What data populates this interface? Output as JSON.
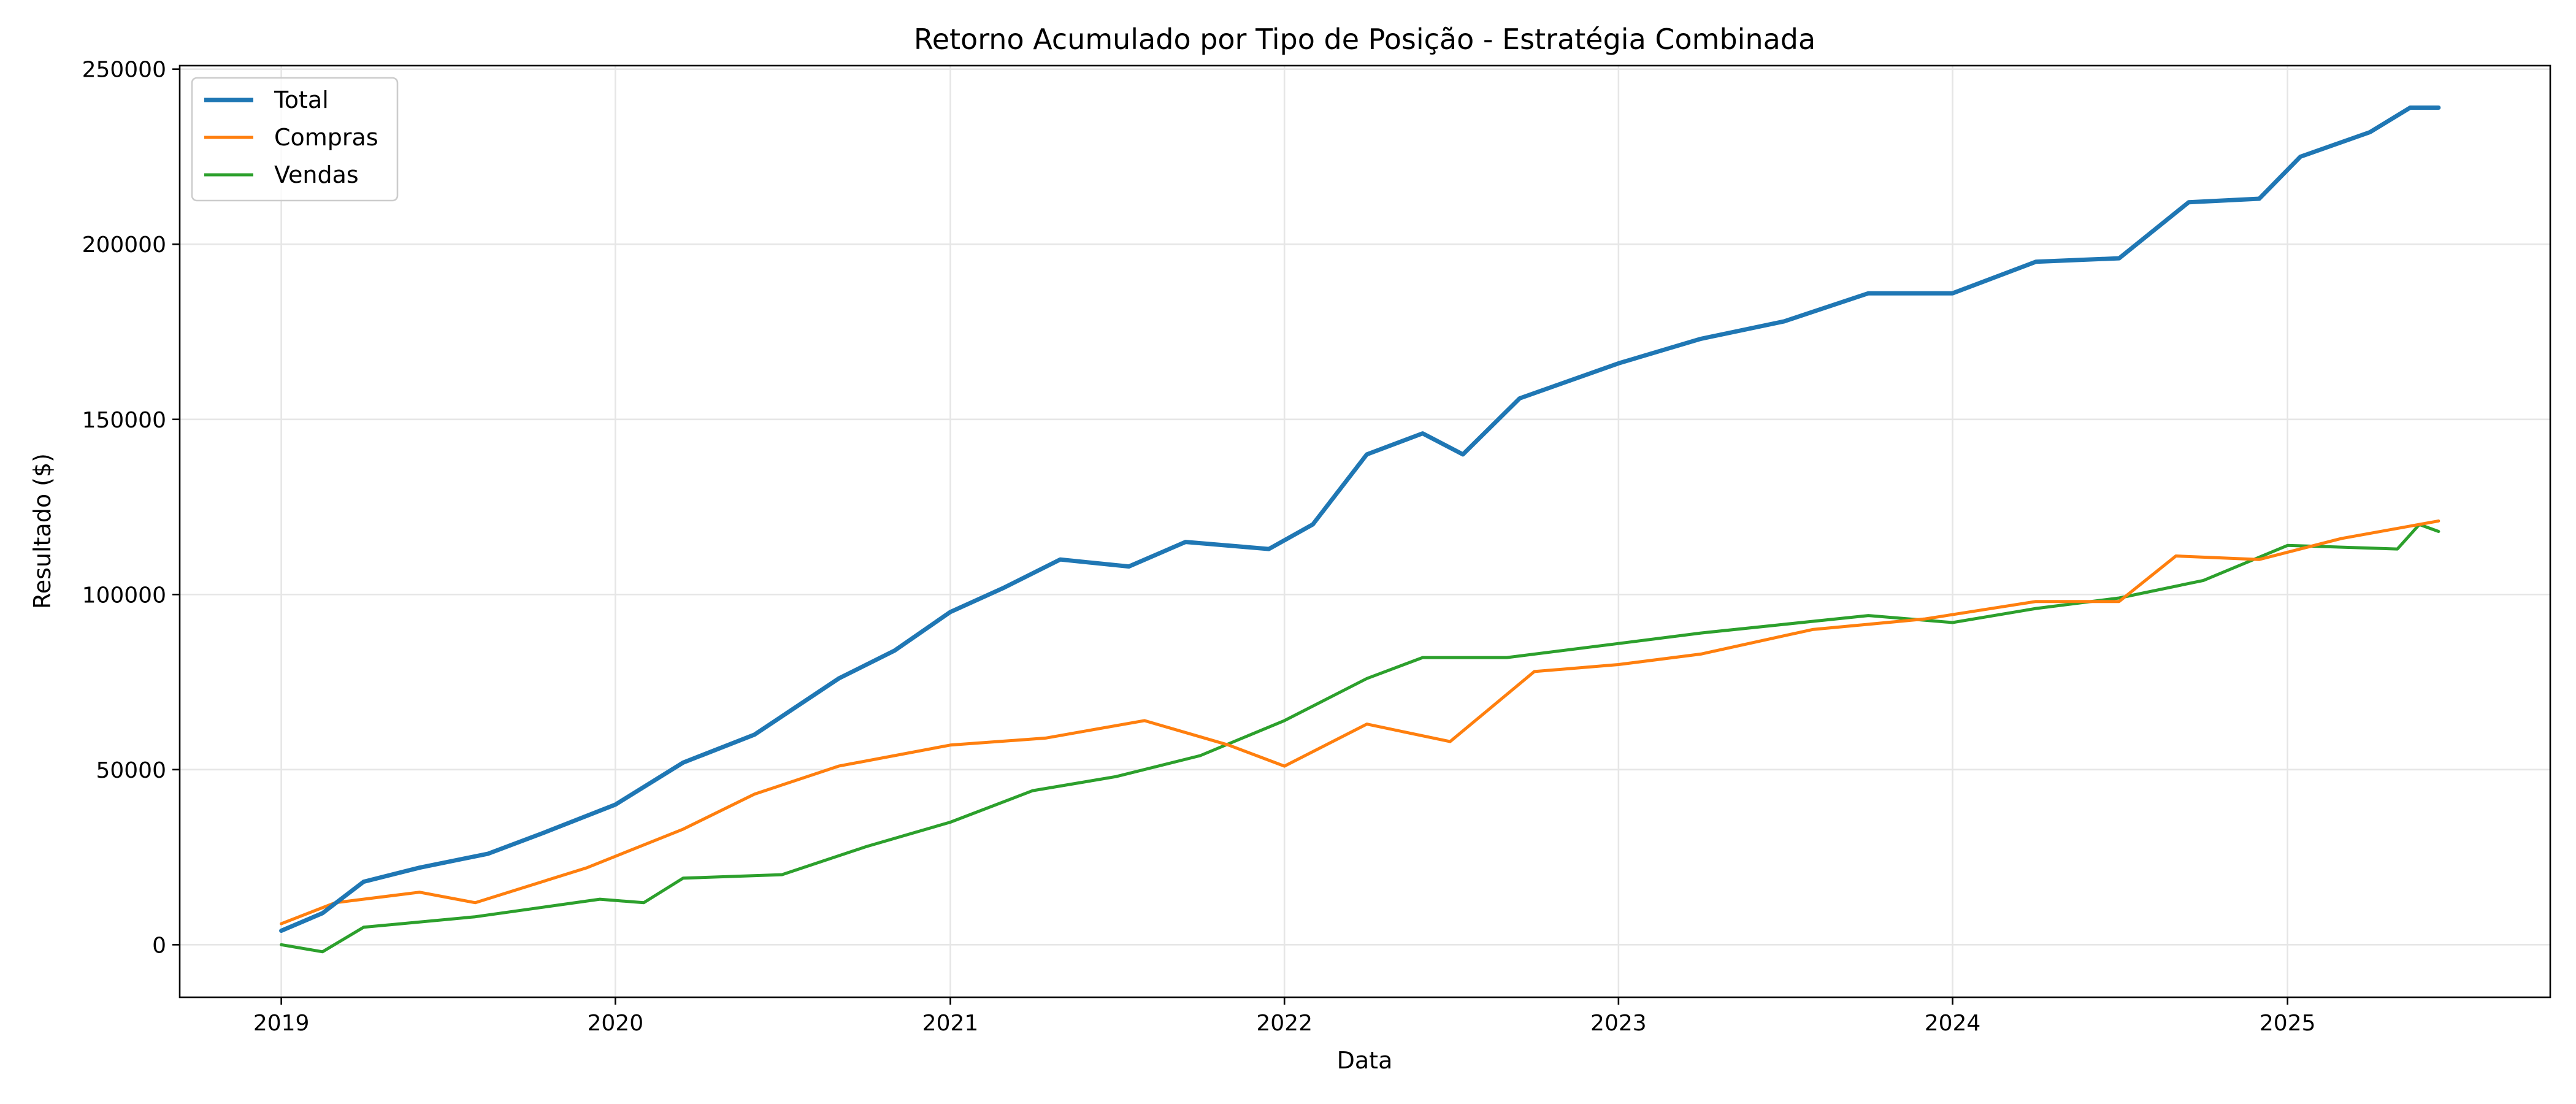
{
  "chart_data": {
    "type": "line",
    "title": "Retorno Acumulado por Tipo de Posição - Estratégia Combinada",
    "xlabel": "Data",
    "ylabel": "Resultado ($)",
    "xlim": [
      "2018-09-12",
      "2025-10-15"
    ],
    "ylim": [
      -15000,
      251000
    ],
    "xticks": [
      "2019",
      "2020",
      "2021",
      "2022",
      "2023",
      "2024",
      "2025"
    ],
    "yticks": [
      0,
      50000,
      100000,
      150000,
      200000,
      250000
    ],
    "grid": true,
    "legend_position": "top-left",
    "series": [
      {
        "name": "Total",
        "color": "#1f77b4",
        "points": [
          [
            "2019-01-01",
            4000
          ],
          [
            "2019-02-15",
            9000
          ],
          [
            "2019-04-01",
            18000
          ],
          [
            "2019-06-01",
            22000
          ],
          [
            "2019-08-15",
            26000
          ],
          [
            "2019-10-15",
            32000
          ],
          [
            "2020-01-01",
            40000
          ],
          [
            "2020-03-15",
            52000
          ],
          [
            "2020-06-01",
            60000
          ],
          [
            "2020-09-01",
            76000
          ],
          [
            "2020-11-01",
            84000
          ],
          [
            "2021-01-01",
            95000
          ],
          [
            "2021-03-01",
            102000
          ],
          [
            "2021-05-01",
            110000
          ],
          [
            "2021-07-15",
            108000
          ],
          [
            "2021-09-15",
            115000
          ],
          [
            "2021-12-15",
            113000
          ],
          [
            "2022-02-01",
            120000
          ],
          [
            "2022-04-01",
            140000
          ],
          [
            "2022-06-01",
            146000
          ],
          [
            "2022-07-15",
            140000
          ],
          [
            "2022-09-15",
            156000
          ],
          [
            "2023-01-01",
            166000
          ],
          [
            "2023-04-01",
            173000
          ],
          [
            "2023-07-01",
            178000
          ],
          [
            "2023-10-01",
            186000
          ],
          [
            "2024-01-01",
            186000
          ],
          [
            "2024-04-01",
            195000
          ],
          [
            "2024-07-01",
            196000
          ],
          [
            "2024-09-15",
            212000
          ],
          [
            "2024-12-01",
            213000
          ],
          [
            "2025-01-15",
            225000
          ],
          [
            "2025-04-01",
            232000
          ],
          [
            "2025-05-15",
            239000
          ],
          [
            "2025-06-15",
            239000
          ]
        ]
      },
      {
        "name": "Compras",
        "color": "#ff7f0e",
        "points": [
          [
            "2019-01-01",
            6000
          ],
          [
            "2019-03-01",
            12000
          ],
          [
            "2019-06-01",
            15000
          ],
          [
            "2019-08-01",
            12000
          ],
          [
            "2019-12-01",
            22000
          ],
          [
            "2020-03-15",
            33000
          ],
          [
            "2020-06-01",
            43000
          ],
          [
            "2020-09-01",
            51000
          ],
          [
            "2021-01-01",
            57000
          ],
          [
            "2021-04-15",
            59000
          ],
          [
            "2021-08-01",
            64000
          ],
          [
            "2021-11-01",
            57000
          ],
          [
            "2022-01-01",
            51000
          ],
          [
            "2022-04-01",
            63000
          ],
          [
            "2022-07-01",
            58000
          ],
          [
            "2022-10-01",
            78000
          ],
          [
            "2023-01-01",
            80000
          ],
          [
            "2023-04-01",
            83000
          ],
          [
            "2023-08-01",
            90000
          ],
          [
            "2023-12-01",
            93000
          ],
          [
            "2024-04-01",
            98000
          ],
          [
            "2024-07-01",
            98000
          ],
          [
            "2024-09-01",
            111000
          ],
          [
            "2024-12-01",
            110000
          ],
          [
            "2025-03-01",
            116000
          ],
          [
            "2025-06-15",
            121000
          ]
        ]
      },
      {
        "name": "Vendas",
        "color": "#2ca02c",
        "points": [
          [
            "2019-01-01",
            0
          ],
          [
            "2019-02-15",
            -2000
          ],
          [
            "2019-04-01",
            5000
          ],
          [
            "2019-08-01",
            8000
          ],
          [
            "2019-12-15",
            13000
          ],
          [
            "2020-02-01",
            12000
          ],
          [
            "2020-03-15",
            19000
          ],
          [
            "2020-07-01",
            20000
          ],
          [
            "2020-10-01",
            28000
          ],
          [
            "2021-01-01",
            35000
          ],
          [
            "2021-04-01",
            44000
          ],
          [
            "2021-07-01",
            48000
          ],
          [
            "2021-10-01",
            54000
          ],
          [
            "2022-01-01",
            64000
          ],
          [
            "2022-04-01",
            76000
          ],
          [
            "2022-06-01",
            82000
          ],
          [
            "2022-09-01",
            82000
          ],
          [
            "2023-01-01",
            86000
          ],
          [
            "2023-04-01",
            89000
          ],
          [
            "2023-10-01",
            94000
          ],
          [
            "2024-01-01",
            92000
          ],
          [
            "2024-04-01",
            96000
          ],
          [
            "2024-07-01",
            99000
          ],
          [
            "2024-10-01",
            104000
          ],
          [
            "2025-01-01",
            114000
          ],
          [
            "2025-05-01",
            113000
          ],
          [
            "2025-05-25",
            120000
          ],
          [
            "2025-06-15",
            118000
          ]
        ]
      }
    ]
  }
}
